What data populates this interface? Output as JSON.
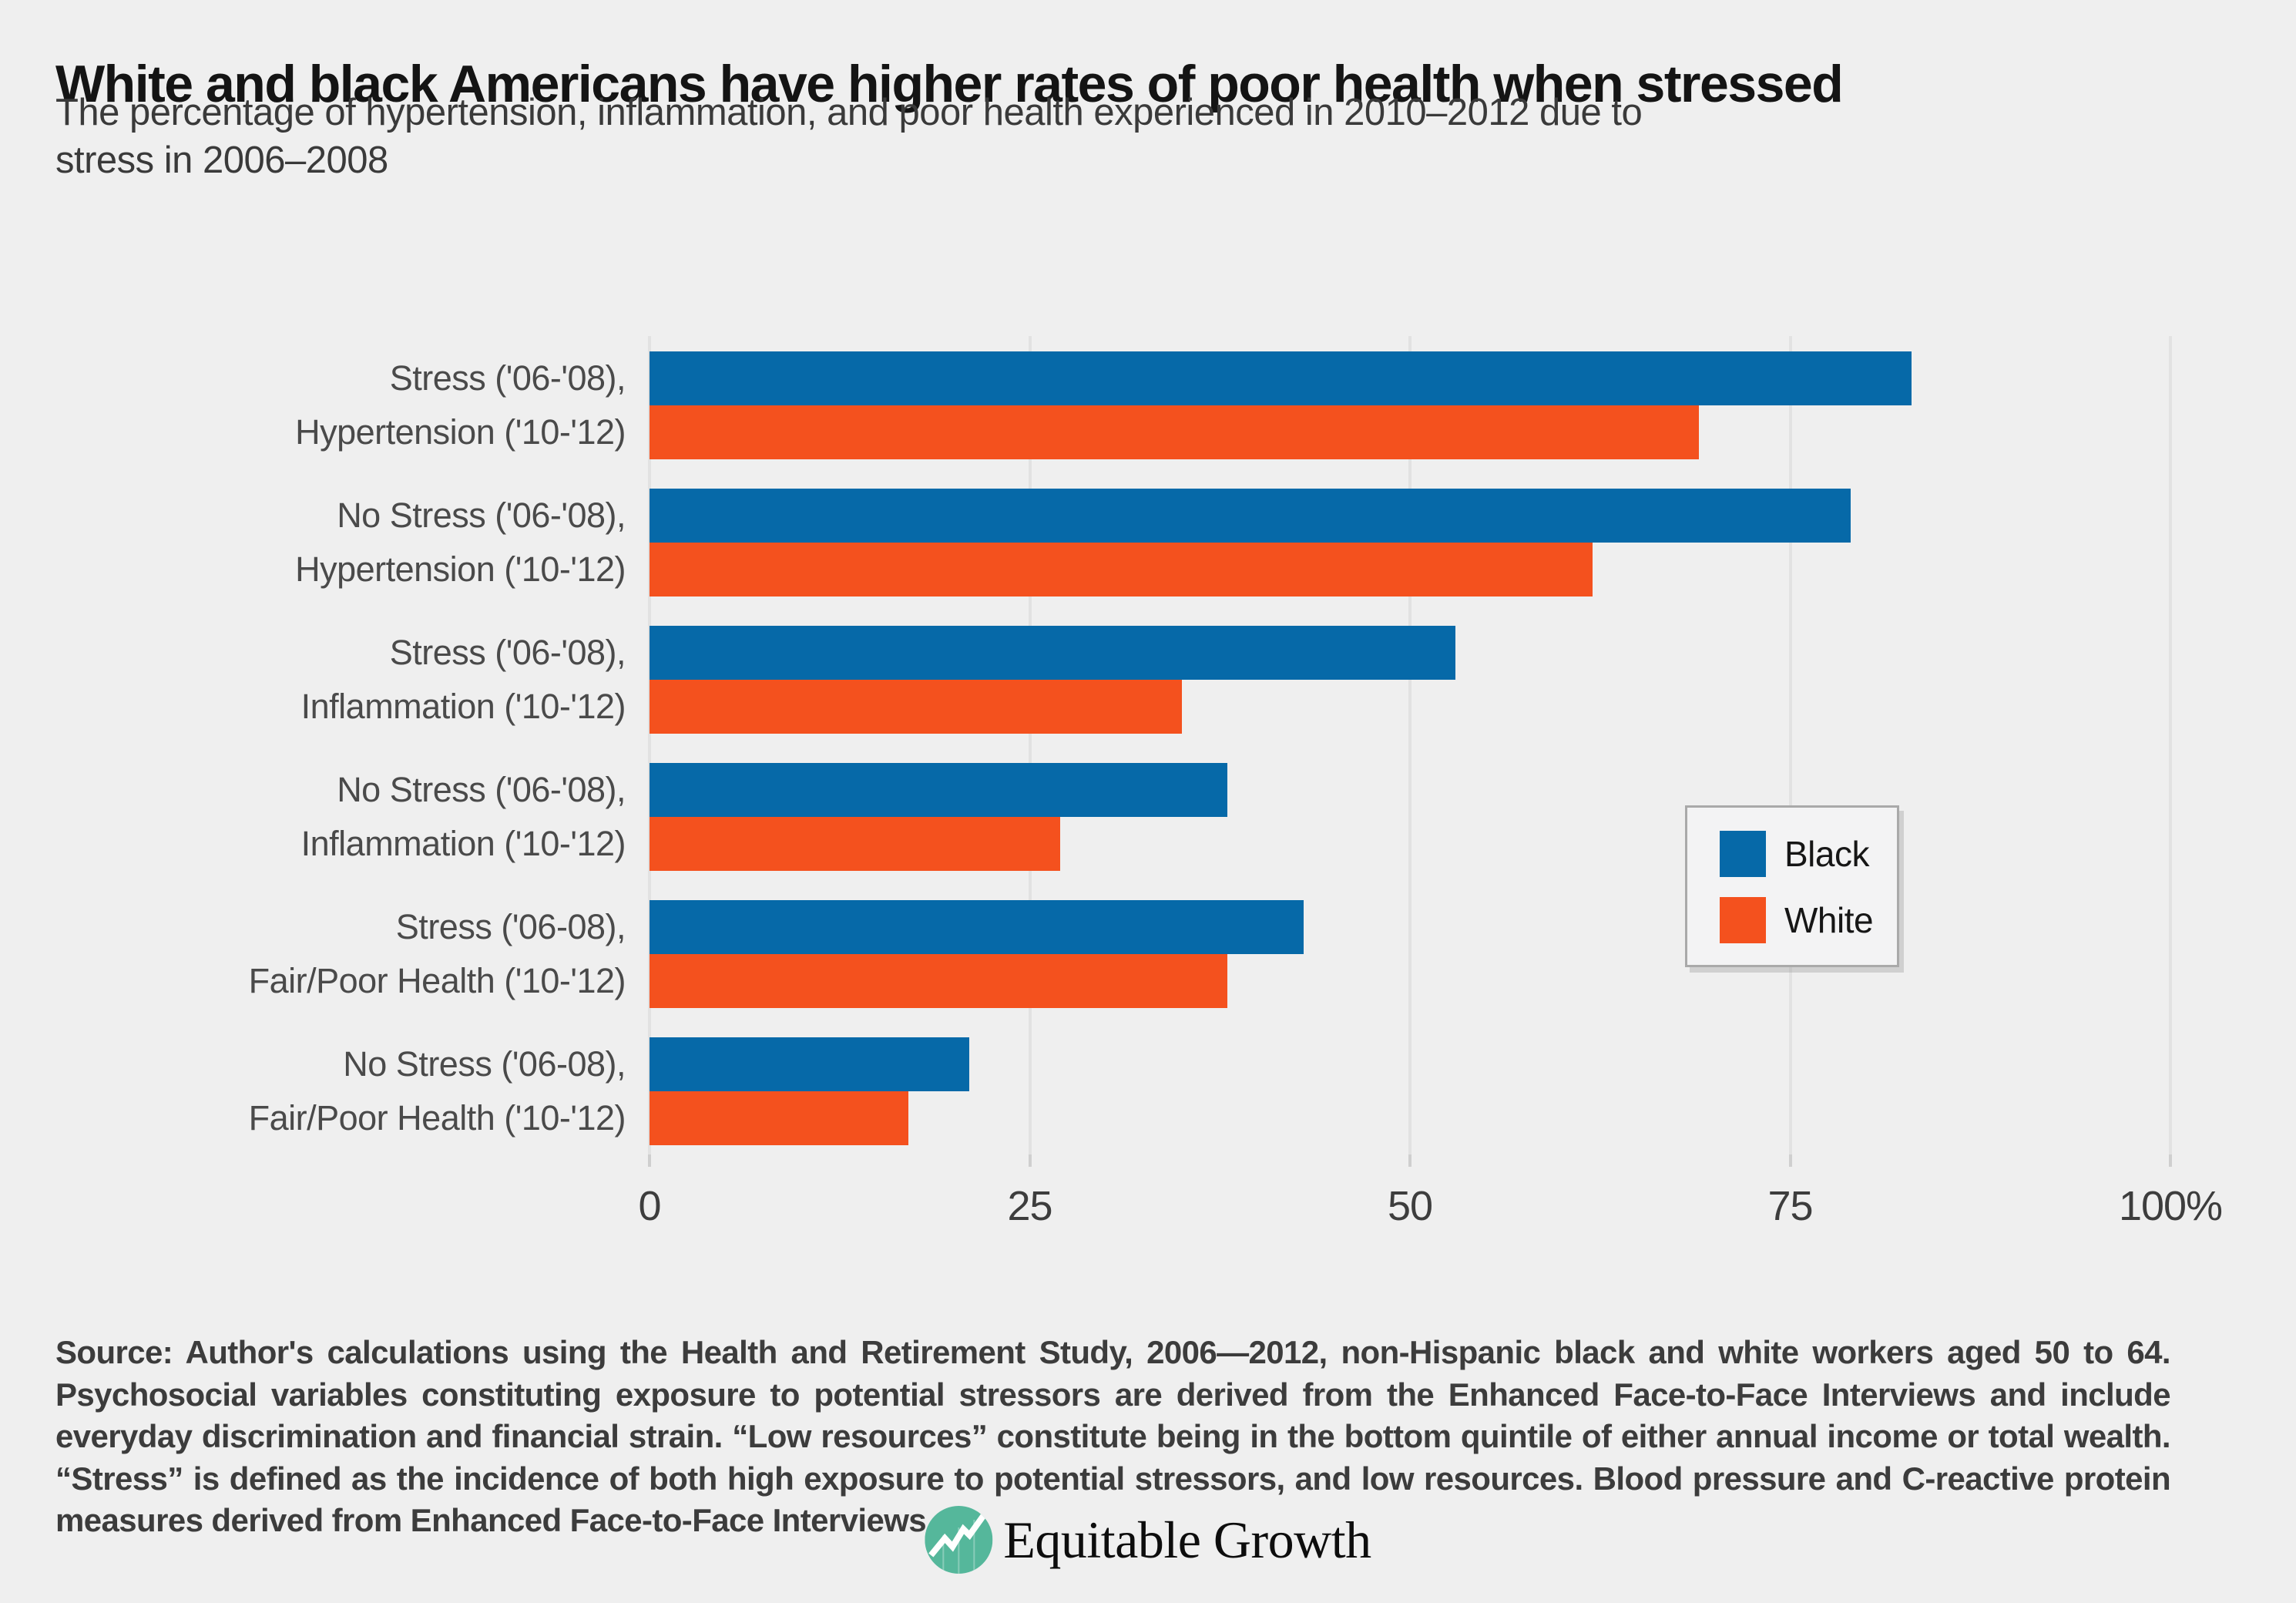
{
  "title": "White and black Americans have higher rates of poor health when stressed",
  "subtitle_lines": [
    "The percentage of hypertension, inflammation, and poor health experienced in 2010–2012 due to",
    "stress in 2006–2008"
  ],
  "colors": {
    "background": "#EFEFEF",
    "black_series": "#0669A8",
    "white_series": "#F4511E",
    "gridline": "#E2E2E2",
    "logo_teal": "#55B79B"
  },
  "chart_data": {
    "type": "bar",
    "orientation": "horizontal",
    "categories": [
      [
        "Stress ('06-'08),",
        "Hypertension ('10-'12)"
      ],
      [
        "No Stress ('06-'08),",
        "Hypertension ('10-'12)"
      ],
      [
        "Stress ('06-'08),",
        "Inflammation ('10-'12)"
      ],
      [
        "No Stress ('06-'08),",
        "Inflammation ('10-'12)"
      ],
      [
        "Stress ('06-08),",
        "Fair/Poor Health ('10-'12)"
      ],
      [
        "No Stress ('06-08),",
        "Fair/Poor Health ('10-'12)"
      ]
    ],
    "series": [
      {
        "name": "Black",
        "color": "#0669A8",
        "values": [
          83,
          79,
          53,
          38,
          43,
          21
        ]
      },
      {
        "name": "White",
        "color": "#F4511E",
        "values": [
          69,
          62,
          35,
          27,
          38,
          17
        ]
      }
    ],
    "xlim": [
      0,
      100
    ],
    "xticks": [
      {
        "value": 0,
        "label": "0"
      },
      {
        "value": 25,
        "label": "25"
      },
      {
        "value": 50,
        "label": "50"
      },
      {
        "value": 75,
        "label": "75"
      },
      {
        "value": 100,
        "label": "100%"
      }
    ],
    "grid": true,
    "legend_position": "right-middle",
    "units": "percent"
  },
  "legend": {
    "items": [
      {
        "label": "Black",
        "color": "#0669A8"
      },
      {
        "label": "White",
        "color": "#F4511E"
      }
    ]
  },
  "source_note": "Source: Author's calculations using the Health and Retirement Study, 2006—2012, non-Hispanic black and white workers aged 50 to 64. Psychosocial variables constituting exposure to potential stressors are derived from the Enhanced Face-to-Face Interviews and include everyday discrimination and financial strain. “Low resources” constitute being in the bottom quintile of either annual income or total wealth. “Stress” is defined as the incidence of both high exposure to potential stressors, and low resources. Blood pressure and C-reactive protein measures derived from Enhanced Face-to-Face Interviews.",
  "logo": {
    "text": "Equitable Growth"
  }
}
